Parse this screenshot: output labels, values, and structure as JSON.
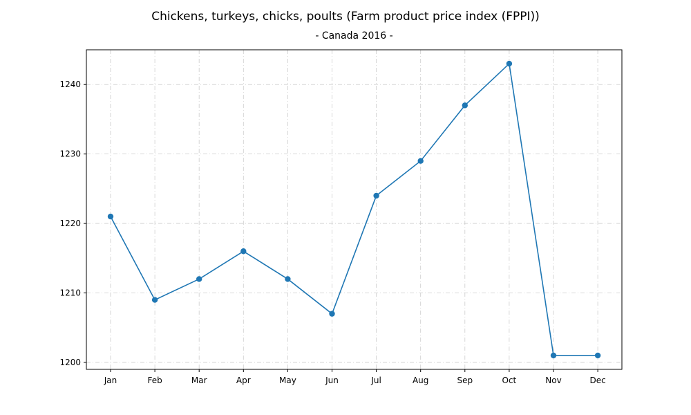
{
  "chart_data": {
    "type": "line",
    "title": "Chickens, turkeys, chicks, poults (Farm product price index (FPPI))",
    "subtitle": "- Canada 2016 -",
    "xlabel": "",
    "ylabel": "",
    "categories": [
      "Jan",
      "Feb",
      "Mar",
      "Apr",
      "May",
      "Jun",
      "Jul",
      "Aug",
      "Sep",
      "Oct",
      "Nov",
      "Dec"
    ],
    "series": [
      {
        "values": [
          1221,
          1209,
          1212,
          1216,
          1212,
          1207,
          1224,
          1229,
          1237,
          1243,
          1201,
          1201
        ]
      }
    ],
    "ylim": [
      1199,
      1245
    ],
    "yticks": [
      1200,
      1210,
      1220,
      1230,
      1240
    ],
    "grid": true,
    "markers": true,
    "line_color": "#1f77b4",
    "grid_color": "#cccccc"
  }
}
